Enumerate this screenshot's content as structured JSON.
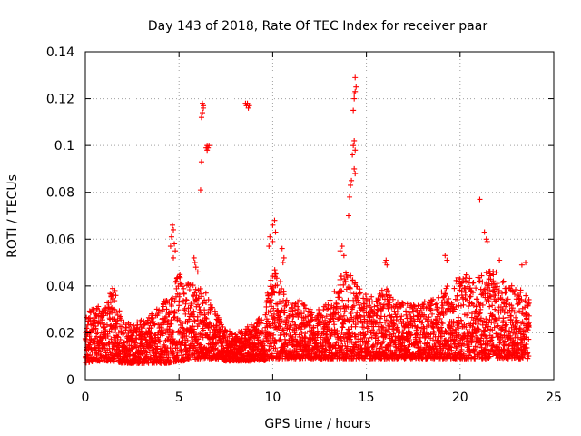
{
  "chart_data": {
    "type": "scatter",
    "title": "Day 143 of 2018, Rate Of TEC Index for receiver paar",
    "xlabel": "GPS time / hours",
    "ylabel": "ROTI / TECUs",
    "xlim": [
      0,
      25
    ],
    "ylim": [
      0,
      0.14
    ],
    "grid": true,
    "marker": "+",
    "color": "#ff0000",
    "x_ticks": [
      0,
      5,
      10,
      15,
      20,
      25
    ],
    "x_tick_labels": [
      "0",
      "5",
      "10",
      "15",
      "20",
      "25"
    ],
    "y_ticks": [
      0,
      0.02,
      0.04,
      0.06,
      0.08,
      0.1,
      0.12,
      0.14
    ],
    "y_tick_labels": [
      "0",
      "0.02",
      "0.04",
      "0.06",
      "0.08",
      "0.1",
      "0.12",
      "0.14"
    ],
    "baseline_envelope": {
      "x": [
        0,
        0.5,
        1,
        1.5,
        2,
        2.5,
        3,
        3.5,
        4,
        4.5,
        5,
        5.5,
        6,
        6.5,
        7,
        7.5,
        8,
        8.5,
        9,
        9.5,
        10,
        10.5,
        11,
        11.5,
        12,
        12.5,
        13,
        13.5,
        14,
        14.5,
        15,
        15.5,
        16,
        16.5,
        17,
        17.5,
        18,
        18.5,
        19,
        19.5,
        20,
        20.5,
        21,
        21.5,
        22,
        22.5,
        23,
        23.7
      ],
      "low": [
        0.007,
        0.008,
        0.008,
        0.008,
        0.007,
        0.007,
        0.007,
        0.007,
        0.007,
        0.007,
        0.008,
        0.008,
        0.009,
        0.009,
        0.009,
        0.008,
        0.008,
        0.008,
        0.008,
        0.008,
        0.009,
        0.009,
        0.009,
        0.009,
        0.009,
        0.009,
        0.009,
        0.009,
        0.009,
        0.009,
        0.009,
        0.009,
        0.009,
        0.009,
        0.009,
        0.009,
        0.009,
        0.009,
        0.009,
        0.009,
        0.009,
        0.009,
        0.009,
        0.009,
        0.009,
        0.009,
        0.009,
        0.009
      ],
      "high": [
        0.027,
        0.032,
        0.03,
        0.042,
        0.025,
        0.024,
        0.026,
        0.028,
        0.032,
        0.036,
        0.048,
        0.042,
        0.04,
        0.037,
        0.028,
        0.022,
        0.02,
        0.022,
        0.024,
        0.028,
        0.05,
        0.04,
        0.032,
        0.034,
        0.03,
        0.03,
        0.033,
        0.042,
        0.05,
        0.042,
        0.036,
        0.035,
        0.04,
        0.034,
        0.033,
        0.032,
        0.033,
        0.036,
        0.038,
        0.042,
        0.045,
        0.047,
        0.044,
        0.048,
        0.047,
        0.042,
        0.04,
        0.036
      ]
    },
    "highlight_points": [
      {
        "x": 4.65,
        "y": 0.066
      },
      {
        "x": 4.7,
        "y": 0.064
      },
      {
        "x": 4.6,
        "y": 0.061
      },
      {
        "x": 4.75,
        "y": 0.058
      },
      {
        "x": 4.55,
        "y": 0.057
      },
      {
        "x": 4.8,
        "y": 0.055
      },
      {
        "x": 4.7,
        "y": 0.052
      },
      {
        "x": 5.8,
        "y": 0.052
      },
      {
        "x": 5.85,
        "y": 0.05
      },
      {
        "x": 5.9,
        "y": 0.048
      },
      {
        "x": 6.0,
        "y": 0.046
      },
      {
        "x": 6.15,
        "y": 0.081
      },
      {
        "x": 6.2,
        "y": 0.093
      },
      {
        "x": 6.2,
        "y": 0.112
      },
      {
        "x": 6.25,
        "y": 0.114
      },
      {
        "x": 6.3,
        "y": 0.116
      },
      {
        "x": 6.25,
        "y": 0.118
      },
      {
        "x": 6.3,
        "y": 0.117
      },
      {
        "x": 6.45,
        "y": 0.099
      },
      {
        "x": 6.5,
        "y": 0.1
      },
      {
        "x": 6.55,
        "y": 0.099
      },
      {
        "x": 6.6,
        "y": 0.1
      },
      {
        "x": 6.5,
        "y": 0.098
      },
      {
        "x": 8.55,
        "y": 0.118
      },
      {
        "x": 8.6,
        "y": 0.117
      },
      {
        "x": 8.65,
        "y": 0.118
      },
      {
        "x": 8.7,
        "y": 0.116
      },
      {
        "x": 8.75,
        "y": 0.117
      },
      {
        "x": 9.8,
        "y": 0.057
      },
      {
        "x": 9.85,
        "y": 0.061
      },
      {
        "x": 10.0,
        "y": 0.066
      },
      {
        "x": 10.1,
        "y": 0.068
      },
      {
        "x": 10.15,
        "y": 0.063
      },
      {
        "x": 10.0,
        "y": 0.059
      },
      {
        "x": 10.5,
        "y": 0.056
      },
      {
        "x": 10.6,
        "y": 0.052
      },
      {
        "x": 10.55,
        "y": 0.05
      },
      {
        "x": 13.6,
        "y": 0.055
      },
      {
        "x": 13.7,
        "y": 0.057
      },
      {
        "x": 13.8,
        "y": 0.053
      },
      {
        "x": 14.05,
        "y": 0.07
      },
      {
        "x": 14.1,
        "y": 0.078
      },
      {
        "x": 14.15,
        "y": 0.083
      },
      {
        "x": 14.2,
        "y": 0.085
      },
      {
        "x": 14.25,
        "y": 0.096
      },
      {
        "x": 14.3,
        "y": 0.1
      },
      {
        "x": 14.35,
        "y": 0.102
      },
      {
        "x": 14.4,
        "y": 0.098
      },
      {
        "x": 14.4,
        "y": 0.088
      },
      {
        "x": 14.35,
        "y": 0.09
      },
      {
        "x": 14.3,
        "y": 0.115
      },
      {
        "x": 14.35,
        "y": 0.12
      },
      {
        "x": 14.4,
        "y": 0.123
      },
      {
        "x": 14.45,
        "y": 0.125
      },
      {
        "x": 14.4,
        "y": 0.129
      },
      {
        "x": 14.35,
        "y": 0.122
      },
      {
        "x": 16.0,
        "y": 0.05
      },
      {
        "x": 16.1,
        "y": 0.049
      },
      {
        "x": 16.05,
        "y": 0.051
      },
      {
        "x": 21.05,
        "y": 0.077
      },
      {
        "x": 21.3,
        "y": 0.063
      },
      {
        "x": 21.4,
        "y": 0.06
      },
      {
        "x": 21.45,
        "y": 0.059
      },
      {
        "x": 19.2,
        "y": 0.053
      },
      {
        "x": 19.3,
        "y": 0.051
      },
      {
        "x": 23.5,
        "y": 0.05
      },
      {
        "x": 23.3,
        "y": 0.049
      },
      {
        "x": 22.1,
        "y": 0.051
      }
    ]
  }
}
